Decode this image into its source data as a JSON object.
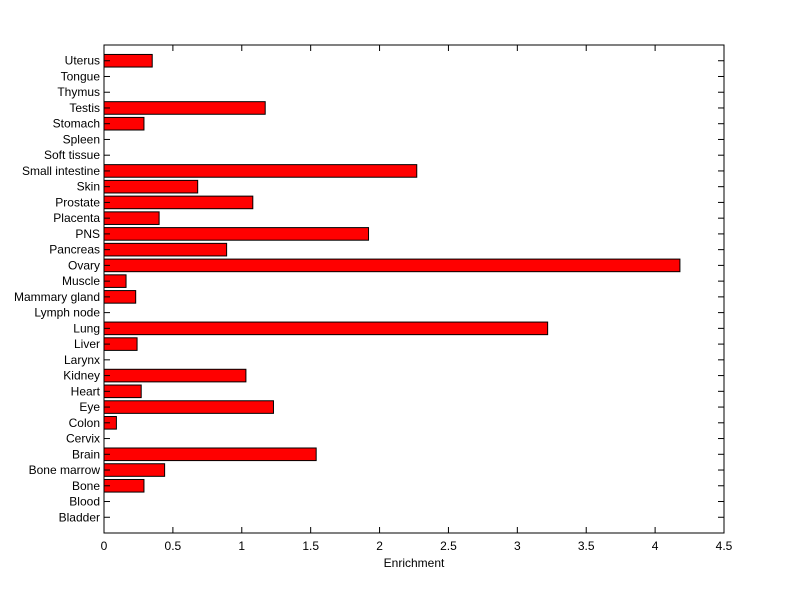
{
  "chart_data": {
    "type": "bar",
    "orientation": "horizontal",
    "categories": [
      "Bladder",
      "Blood",
      "Bone",
      "Bone marrow",
      "Brain",
      "Cervix",
      "Colon",
      "Eye",
      "Heart",
      "Kidney",
      "Larynx",
      "Liver",
      "Lung",
      "Lymph node",
      "Mammary gland",
      "Muscle",
      "Ovary",
      "Pancreas",
      "PNS",
      "Placenta",
      "Prostate",
      "Skin",
      "Small intestine",
      "Soft tissue",
      "Spleen",
      "Stomach",
      "Testis",
      "Thymus",
      "Tongue",
      "Uterus"
    ],
    "values": [
      0,
      0,
      0.29,
      0.44,
      1.54,
      0,
      0.09,
      1.23,
      0.27,
      1.03,
      0,
      0.24,
      3.22,
      0,
      0.23,
      0.16,
      4.18,
      0.89,
      1.92,
      0.4,
      1.08,
      0.68,
      2.27,
      0,
      0,
      0.29,
      1.17,
      0,
      0,
      0.35
    ],
    "xlabel": "Enrichment",
    "ylabel": "",
    "title": "",
    "xlim": [
      0,
      4.5
    ],
    "xticks": [
      "0",
      "0.5",
      "1",
      "1.5",
      "2",
      "2.5",
      "3",
      "3.5",
      "4",
      "4.5"
    ],
    "grid": false,
    "bar_color": "#ff0000",
    "edge_color": "#000000"
  }
}
